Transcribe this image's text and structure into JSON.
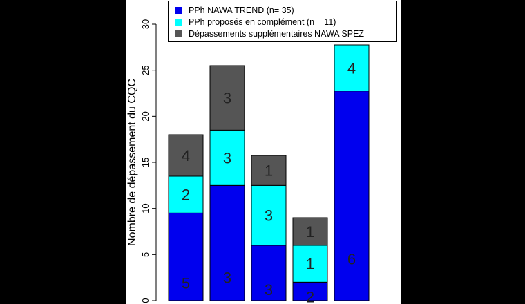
{
  "chart_data": {
    "type": "bar",
    "stacked": true,
    "title": "",
    "xlabel": "",
    "ylabel": "Nombre de dépassement du CQC",
    "ylim": [
      0,
      30
    ],
    "yticks": [
      0,
      5,
      10,
      15,
      20,
      25,
      30
    ],
    "categories": [
      "",
      "",
      "",
      "",
      ""
    ],
    "legend_position": "top",
    "grid": false,
    "series": [
      {
        "name": "PPh NAWA TREND (n= 35)",
        "color": "#0000EE",
        "values": [
          9.5,
          12.5,
          6,
          2,
          22.75
        ],
        "labels": [
          "5",
          "3",
          "3",
          "2",
          "6"
        ]
      },
      {
        "name": "PPh proposés en complément (n = 11)",
        "color": "#00FFFF",
        "values": [
          4,
          6,
          6.5,
          4,
          5
        ],
        "labels": [
          "2",
          "3",
          "3",
          "1",
          "4"
        ]
      },
      {
        "name": "Dépassements supplémentaires NAWA SPEZ",
        "color": "#555555",
        "values": [
          4.5,
          7,
          3.25,
          3,
          0
        ],
        "labels": [
          "4",
          "3",
          "1",
          "1",
          ""
        ]
      }
    ]
  }
}
